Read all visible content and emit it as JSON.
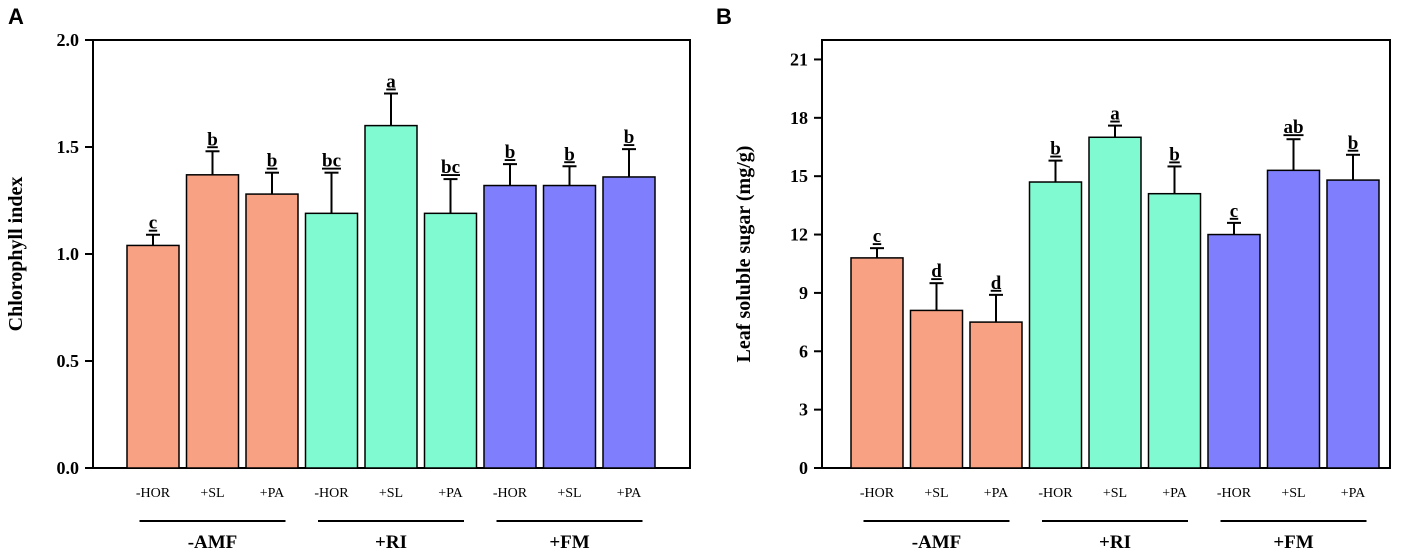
{
  "chart_data": [
    {
      "panel": "A",
      "type": "bar",
      "title": "",
      "xlabel": "",
      "ylabel": "Chlorophyll index",
      "ylim": [
        0,
        2.0
      ],
      "yticks": [
        "0.0",
        "0.5",
        "1.0",
        "1.5",
        "2.0"
      ],
      "categories": [
        "-HOR",
        "+SL",
        "+PA",
        "-HOR",
        "+SL",
        "+PA",
        "-HOR",
        "+SL",
        "+PA"
      ],
      "values": [
        1.04,
        1.37,
        1.28,
        1.19,
        1.6,
        1.19,
        1.32,
        1.32,
        1.36
      ],
      "errors": [
        0.05,
        0.11,
        0.1,
        0.19,
        0.15,
        0.16,
        0.1,
        0.09,
        0.13
      ],
      "significance": [
        "c",
        "b",
        "b",
        "bc",
        "a",
        "bc",
        "b",
        "b",
        "b"
      ],
      "groups": [
        {
          "label": "-AMF",
          "color": "#F9A283"
        },
        {
          "label": "+RI",
          "color": "#7FFAD1"
        },
        {
          "label": "+FM",
          "color": "#7F7FFD"
        }
      ]
    },
    {
      "panel": "B",
      "type": "bar",
      "title": "",
      "xlabel": "",
      "ylabel": "Leaf soluble sugar (mg/g)",
      "ylim": [
        0,
        22
      ],
      "yticks": [
        "0",
        "3",
        "6",
        "9",
        "12",
        "15",
        "18",
        "21"
      ],
      "categories": [
        "-HOR",
        "+SL",
        "+PA",
        "-HOR",
        "+SL",
        "+PA",
        "-HOR",
        "+SL",
        "+PA"
      ],
      "values": [
        10.8,
        8.1,
        7.5,
        14.7,
        17.0,
        14.1,
        12.0,
        15.3,
        14.8
      ],
      "errors": [
        0.5,
        1.4,
        1.4,
        1.1,
        0.6,
        1.4,
        0.6,
        1.6,
        1.3
      ],
      "significance": [
        "c",
        "d",
        "d",
        "b",
        "a",
        "b",
        "c",
        "ab",
        "b"
      ],
      "groups": [
        {
          "label": "-AMF",
          "color": "#F9A283"
        },
        {
          "label": "+RI",
          "color": "#7FFAD1"
        },
        {
          "label": "+FM",
          "color": "#7F7FFD"
        }
      ]
    }
  ]
}
